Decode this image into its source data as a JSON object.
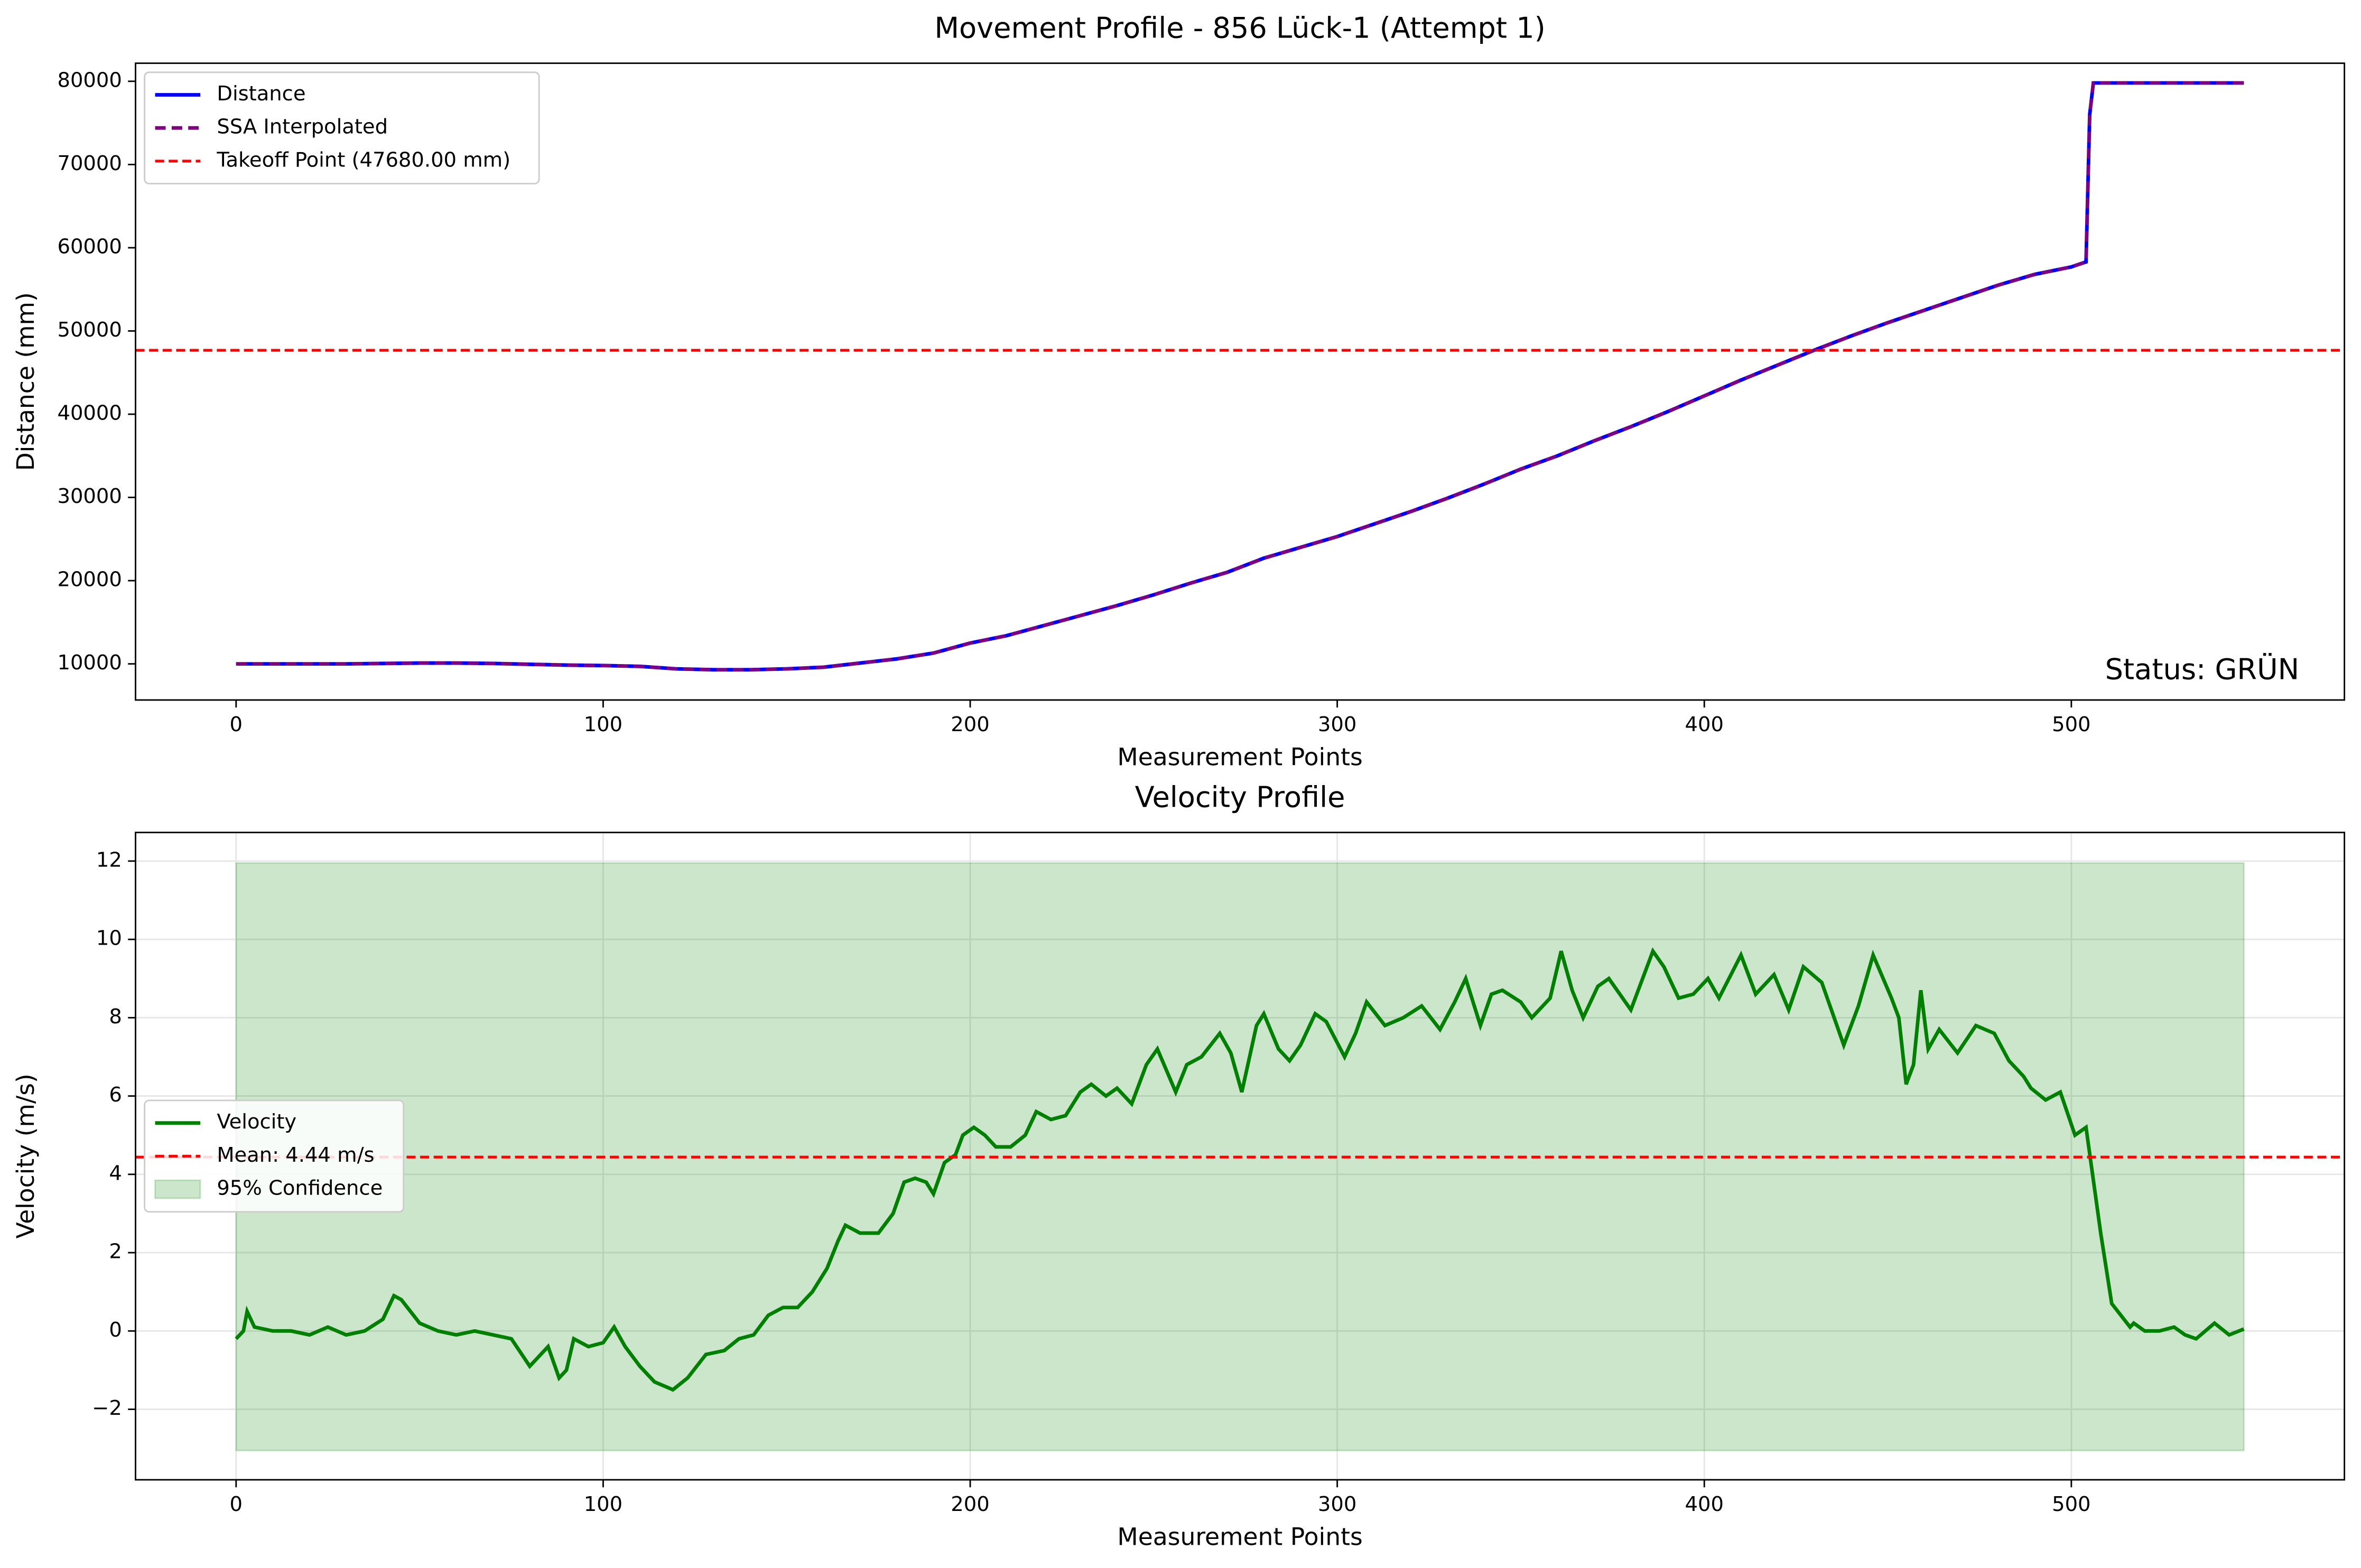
{
  "chart_data": [
    {
      "type": "line",
      "title": "Movement Profile - 856 Lück-1 (Attempt 1)",
      "x_label": "Measurement Points",
      "y_label": "Distance (mm)",
      "xlim": [
        -27.4,
        574.4
      ],
      "ylim": [
        5660,
        82170
      ],
      "xticks": [
        0,
        100,
        200,
        300,
        400,
        500
      ],
      "yticks": [
        10000,
        20000,
        30000,
        40000,
        50000,
        60000,
        70000,
        80000
      ],
      "grid": false,
      "legend": "upper left",
      "x": [
        0,
        10,
        20,
        30,
        40,
        50,
        60,
        70,
        80,
        90,
        100,
        110,
        120,
        130,
        140,
        150,
        160,
        170,
        180,
        190,
        200,
        210,
        220,
        230,
        240,
        250,
        260,
        270,
        280,
        290,
        300,
        310,
        320,
        330,
        340,
        350,
        360,
        370,
        380,
        390,
        400,
        410,
        420,
        430,
        440,
        450,
        460,
        470,
        480,
        490,
        500,
        504,
        505,
        506,
        520,
        547
      ],
      "series": [
        {
          "name": "Distance",
          "color": "#0000ff",
          "dash": false,
          "values": [
            10000,
            10000,
            10000,
            10000,
            10050,
            10100,
            10100,
            10050,
            9950,
            9850,
            9800,
            9700,
            9400,
            9300,
            9300,
            9400,
            9600,
            10100,
            10600,
            11300,
            12500,
            13400,
            14600,
            15800,
            17000,
            18300,
            19700,
            21000,
            22700,
            24000,
            25300,
            26800,
            28300,
            29900,
            31600,
            33400,
            35000,
            36800,
            38500,
            40300,
            42200,
            44100,
            45900,
            47700,
            49400,
            51000,
            52500,
            54000,
            55500,
            56800,
            57700,
            58300,
            76000,
            79800,
            79800,
            79800
          ]
        },
        {
          "name": "SSA Interpolated",
          "color": "#800080",
          "dash": true,
          "values": [
            10000,
            10000,
            10000,
            10000,
            10050,
            10100,
            10100,
            10050,
            9950,
            9850,
            9800,
            9700,
            9400,
            9300,
            9300,
            9400,
            9600,
            10100,
            10600,
            11300,
            12500,
            13400,
            14600,
            15800,
            17000,
            18300,
            19700,
            21000,
            22700,
            24000,
            25300,
            26800,
            28300,
            29900,
            31600,
            33400,
            35000,
            36800,
            38500,
            40300,
            42200,
            44100,
            45900,
            47700,
            49400,
            51000,
            52500,
            54000,
            55500,
            56800,
            57700,
            58300,
            76000,
            79800,
            79800,
            79800
          ]
        }
      ],
      "hlines": [
        {
          "name": "Takeoff Point (47680.00 mm)",
          "value": 47680,
          "color": "#ff0000"
        }
      ],
      "annotation": {
        "text": "Status: GRÜN",
        "color": "#008000"
      }
    },
    {
      "type": "line",
      "title": "Velocity Profile",
      "x_label": "Measurement Points",
      "y_label": "Velocity (m/s)",
      "xlim": [
        -27.4,
        574.4
      ],
      "ylim": [
        -3.8,
        12.73
      ],
      "xticks": [
        0,
        100,
        200,
        300,
        400,
        500
      ],
      "yticks": [
        {
          "value": -2,
          "label": "−2"
        },
        0,
        2,
        4,
        6,
        8,
        10,
        12
      ],
      "grid": true,
      "legend": "center left",
      "x": [
        0,
        2,
        3,
        5,
        10,
        15,
        20,
        25,
        30,
        35,
        40,
        43,
        45,
        50,
        55,
        60,
        65,
        70,
        75,
        80,
        85,
        88,
        90,
        92,
        96,
        100,
        103,
        106,
        110,
        114,
        119,
        123,
        128,
        133,
        137,
        141,
        145,
        149,
        153,
        157,
        161,
        164,
        166,
        170,
        175,
        179,
        182,
        185,
        188,
        190,
        193,
        196,
        198,
        201,
        204,
        207,
        211,
        215,
        218,
        222,
        226,
        230,
        233,
        237,
        240,
        244,
        248,
        251,
        256,
        259,
        263,
        268,
        271,
        274,
        278,
        280,
        284,
        287,
        290,
        294,
        297,
        302,
        305,
        308,
        313,
        318,
        323,
        328,
        332,
        335,
        339,
        342,
        345,
        350,
        353,
        358,
        361,
        364,
        367,
        371,
        374,
        380,
        386,
        389,
        393,
        397,
        401,
        404,
        410,
        414,
        419,
        423,
        427,
        432,
        435,
        438,
        442,
        446,
        451,
        453,
        455,
        457,
        459,
        461,
        464,
        469,
        474,
        479,
        483,
        487,
        489,
        493,
        497,
        501,
        504,
        508,
        511,
        516,
        517,
        520,
        524,
        528,
        531,
        534,
        539,
        543,
        547
      ],
      "series": [
        {
          "name": "Velocity",
          "color": "#008000",
          "dash": false,
          "values": [
            -0.2,
            0,
            0.5,
            0.1,
            0,
            0,
            -0.1,
            0.1,
            -0.1,
            0,
            0.3,
            0.9,
            0.8,
            0.2,
            0,
            -0.1,
            0,
            -0.1,
            -0.2,
            -0.9,
            -0.4,
            -1.2,
            -1.0,
            -0.2,
            -0.4,
            -0.3,
            0.1,
            -0.4,
            -0.9,
            -1.3,
            -1.5,
            -1.2,
            -0.6,
            -0.5,
            -0.2,
            -0.1,
            0.4,
            0.6,
            0.6,
            1.0,
            1.6,
            2.3,
            2.7,
            2.5,
            2.5,
            3.0,
            3.8,
            3.9,
            3.8,
            3.5,
            4.3,
            4.5,
            5.0,
            5.2,
            5.0,
            4.7,
            4.7,
            5.0,
            5.6,
            5.4,
            5.5,
            6.1,
            6.3,
            6.0,
            6.2,
            5.8,
            6.8,
            7.2,
            6.1,
            6.8,
            7.0,
            7.6,
            7.1,
            6.1,
            7.8,
            8.1,
            7.2,
            6.9,
            7.3,
            8.1,
            7.9,
            7.0,
            7.6,
            8.4,
            7.8,
            8.0,
            8.3,
            7.7,
            8.4,
            9.0,
            7.8,
            8.6,
            8.7,
            8.4,
            8.0,
            8.5,
            9.7,
            8.7,
            8.0,
            8.8,
            9.0,
            8.2,
            9.7,
            9.3,
            8.5,
            8.6,
            9.0,
            8.5,
            9.6,
            8.6,
            9.1,
            8.2,
            9.3,
            8.9,
            8.1,
            7.3,
            8.3,
            9.6,
            8.5,
            8.0,
            6.3,
            6.8,
            8.7,
            7.2,
            7.7,
            7.1,
            7.8,
            7.6,
            6.9,
            6.5,
            6.2,
            5.9,
            6.1,
            5.0,
            5.2,
            2.5,
            0.7,
            0.1,
            0.2,
            0,
            0,
            0.1,
            -0.1,
            -0.2,
            0.2,
            -0.1,
            0.05
          ]
        }
      ],
      "hlines": [
        {
          "name": "Mean: 4.44 m/s",
          "value": 4.44,
          "color": "#ff0000"
        }
      ],
      "band": {
        "name": "95% Confidence",
        "x": [
          0,
          547
        ],
        "lower": -3.05,
        "upper": 11.95,
        "color": "#008000"
      }
    }
  ]
}
